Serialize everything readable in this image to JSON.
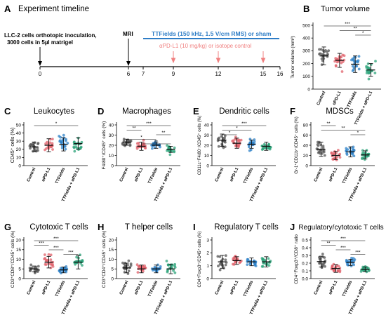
{
  "timeline": {
    "panel_letter": "A",
    "title": "Experiment timeline",
    "inoculation_text_1": "LLC-2 cells orthotopic inoculation,",
    "inoculation_text_2": "3000 cells in 5µl matrigel",
    "mri_label": "MRI",
    "ttfields_label": "TTFields (150 kHz, 1.5 V/cm RMS) or sham",
    "apdl1_label": "αPD-L1 (10 mg/kg) or isotope control",
    "day_ticks": [
      "0",
      "6",
      "7",
      "9",
      "12",
      "15",
      "16"
    ],
    "colors": {
      "ttfields": "#2e7dc6",
      "apdl1": "#f08080",
      "axis": "#000000"
    }
  },
  "groups": [
    "Control",
    "αPD-L1",
    "TTFields",
    "TTFields + αPD-L1"
  ],
  "group_colors": [
    "#555555",
    "#e0606a",
    "#2e82c8",
    "#2ca37a"
  ],
  "chart_data": [
    {
      "panel": "B",
      "type": "scatter",
      "title": "Tumor volume",
      "ylabel": "Tumor volume (mm³)",
      "yticks": [
        "0",
        "100",
        "200",
        "300",
        "400",
        "500"
      ],
      "ylim": [
        0,
        500
      ],
      "series": [
        {
          "name": "Control",
          "mean": 260,
          "sd": 70
        },
        {
          "name": "αPD-L1",
          "mean": 225,
          "sd": 55
        },
        {
          "name": "TTFields",
          "mean": 195,
          "sd": 65
        },
        {
          "name": "TTFields + αPD-L1",
          "mean": 150,
          "sd": 50
        }
      ],
      "significance": [
        {
          "from": 0,
          "to": 3,
          "label": "***"
        },
        {
          "from": 1,
          "to": 3,
          "label": "**"
        },
        {
          "from": 2,
          "to": 3,
          "label": "*"
        }
      ]
    },
    {
      "panel": "C",
      "type": "scatter",
      "title": "Leukocytes",
      "ylabel": "CD45⁺ cells (%)",
      "yticks": [
        "0",
        "10",
        "20",
        "30",
        "40",
        "50"
      ],
      "ylim": [
        0,
        50
      ],
      "series": [
        {
          "name": "Control",
          "mean": 23,
          "sd": 6
        },
        {
          "name": "αPD-L1",
          "mean": 25,
          "sd": 8
        },
        {
          "name": "TTFields",
          "mean": 26,
          "sd": 8
        },
        {
          "name": "TTFields + αPD-L1",
          "mean": 27,
          "sd": 7
        }
      ],
      "significance": [
        {
          "from": 0,
          "to": 3,
          "label": "*"
        }
      ]
    },
    {
      "panel": "D",
      "type": "scatter",
      "title": "Macrophages",
      "ylabel": "F4/80⁺/CD45⁺ cells (%)",
      "yticks": [
        "0",
        "10",
        "20",
        "30",
        "40"
      ],
      "ylim": [
        0,
        40
      ],
      "series": [
        {
          "name": "Control",
          "mean": 23,
          "sd": 3
        },
        {
          "name": "αPD-L1",
          "mean": 19,
          "sd": 4
        },
        {
          "name": "TTFields",
          "mean": 20,
          "sd": 3
        },
        {
          "name": "TTFields + αPD-L1",
          "mean": 16,
          "sd": 3
        }
      ],
      "significance": [
        {
          "from": 0,
          "to": 3,
          "label": "***"
        },
        {
          "from": 0,
          "to": 1,
          "label": "**"
        },
        {
          "from": 2,
          "to": 3,
          "label": "**"
        },
        {
          "from": 0,
          "to": 2,
          "label": "*"
        },
        {
          "from": 1,
          "to": 3,
          "label": "**"
        }
      ]
    },
    {
      "panel": "E",
      "type": "scatter",
      "title": "Dendritic cells",
      "ylabel": "CD11c⁺F4/80⁻/CD45⁺ cells (%)",
      "yticks": [
        "0",
        "10",
        "20",
        "30",
        "40"
      ],
      "ylim": [
        0,
        40
      ],
      "series": [
        {
          "name": "Control",
          "mean": 25,
          "sd": 6
        },
        {
          "name": "αPD-L1",
          "mean": 22,
          "sd": 5
        },
        {
          "name": "TTFields",
          "mean": 21,
          "sd": 4
        },
        {
          "name": "TTFields + αPD-L1",
          "mean": 19,
          "sd": 4
        }
      ],
      "significance": [
        {
          "from": 0,
          "to": 3,
          "label": "***"
        },
        {
          "from": 0,
          "to": 2,
          "label": "*"
        },
        {
          "from": 0,
          "to": 1,
          "label": "*"
        }
      ]
    },
    {
      "panel": "F",
      "type": "scatter",
      "title": "MDSCs",
      "ylabel": "Gr-1⁺CD11b⁺/CD45⁺ cells (%)",
      "yticks": [
        "0",
        "20",
        "40",
        "60",
        "80"
      ],
      "ylim": [
        0,
        80
      ],
      "series": [
        {
          "name": "Control",
          "mean": 32,
          "sd": 14
        },
        {
          "name": "αPD-L1",
          "mean": 20,
          "sd": 8
        },
        {
          "name": "TTFields",
          "mean": 27,
          "sd": 10
        },
        {
          "name": "TTFields + αPD-L1",
          "mean": 21,
          "sd": 8
        }
      ],
      "significance": [
        {
          "from": 0,
          "to": 1,
          "label": "**"
        },
        {
          "from": 0,
          "to": 3,
          "label": "**"
        },
        {
          "from": 2,
          "to": 3,
          "label": "*"
        }
      ]
    },
    {
      "panel": "G",
      "type": "scatter",
      "title": "Cytotoxic T cells",
      "ylabel": "CD3⁺CD8⁺/CD45⁺ cells (%)",
      "yticks": [
        "0",
        "5",
        "10",
        "15",
        "20"
      ],
      "ylim": [
        0,
        20
      ],
      "series": [
        {
          "name": "Control",
          "mean": 5,
          "sd": 1.5
        },
        {
          "name": "αPD-L1",
          "mean": 8.5,
          "sd": 3
        },
        {
          "name": "TTFields",
          "mean": 4.5,
          "sd": 1.5
        },
        {
          "name": "TTFields + αPD-L1",
          "mean": 8.5,
          "sd": 3.5
        }
      ],
      "significance": [
        {
          "from": 0,
          "to": 3,
          "label": "***"
        },
        {
          "from": 0,
          "to": 1,
          "label": "***"
        },
        {
          "from": 1,
          "to": 2,
          "label": "***"
        },
        {
          "from": 2,
          "to": 3,
          "label": "***"
        }
      ]
    },
    {
      "panel": "H",
      "type": "scatter",
      "title": "T helper cells",
      "ylabel": "CD3⁺CD4⁺/CD45⁺ cells (%)",
      "yticks": [
        "0",
        "5",
        "10",
        "15",
        "20"
      ],
      "ylim": [
        0,
        20
      ],
      "series": [
        {
          "name": "Control",
          "mean": 5.5,
          "sd": 2.5
        },
        {
          "name": "αPD-L1",
          "mean": 5,
          "sd": 2
        },
        {
          "name": "TTFields",
          "mean": 5,
          "sd": 2
        },
        {
          "name": "TTFields + αPD-L1",
          "mean": 5,
          "sd": 2.5
        }
      ],
      "significance": []
    },
    {
      "panel": "I",
      "type": "scatter",
      "title": "Regulatory T cells",
      "ylabel": "CD4⁺Foxp3⁺/CD45⁺ cells (%)",
      "yticks": [
        "0",
        "1",
        "2",
        "3"
      ],
      "ylim": [
        0,
        3
      ],
      "series": [
        {
          "name": "Control",
          "mean": 1.3,
          "sd": 0.5
        },
        {
          "name": "αPD-L1",
          "mean": 1.4,
          "sd": 0.3
        },
        {
          "name": "TTFields",
          "mean": 1.3,
          "sd": 0.3
        },
        {
          "name": "TTFields + αPD-L1",
          "mean": 1.3,
          "sd": 0.4
        }
      ],
      "significance": []
    },
    {
      "panel": "J",
      "type": "scatter",
      "title": "Regulatory/cytotoxic T cells",
      "ylabel": "CD4⁺Foxp3⁺/CD8⁺ ratio",
      "yticks": [
        "0.0",
        "0.1",
        "0.2",
        "0.3",
        "0.4",
        "0.5"
      ],
      "ylim": [
        0,
        0.5
      ],
      "series": [
        {
          "name": "Control",
          "mean": 0.22,
          "sd": 0.07
        },
        {
          "name": "αPD-L1",
          "mean": 0.13,
          "sd": 0.05
        },
        {
          "name": "TTFields",
          "mean": 0.21,
          "sd": 0.04
        },
        {
          "name": "TTFields + αPD-L1",
          "mean": 0.12,
          "sd": 0.03
        }
      ],
      "significance": [
        {
          "from": 0,
          "to": 3,
          "label": "***"
        },
        {
          "from": 0,
          "to": 1,
          "label": "**"
        },
        {
          "from": 1,
          "to": 2,
          "label": "***"
        },
        {
          "from": 2,
          "to": 3,
          "label": "***"
        }
      ]
    }
  ]
}
